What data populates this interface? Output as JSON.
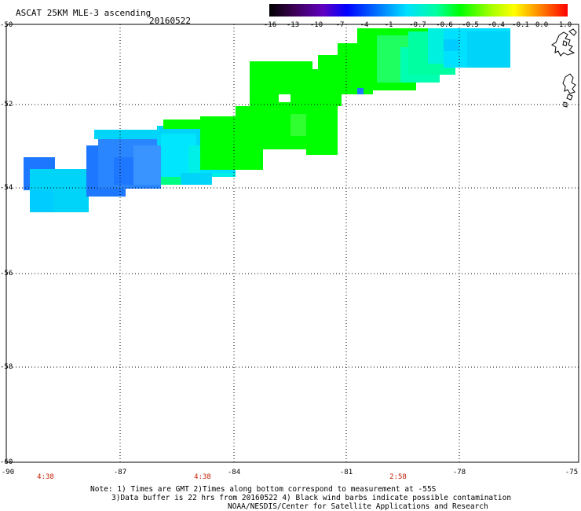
{
  "header": {
    "title": "ASCAT 25KM MLE-3 ascending",
    "date": "20160522"
  },
  "colorbar": {
    "labels": [
      "-16",
      "-13",
      "-10",
      "-7",
      "-4",
      "-1",
      "-0.7",
      "-0.6",
      "-0.5",
      "-0.4",
      "-0.1",
      "0.0",
      "1.0"
    ]
  },
  "axes": {
    "lat_labels": [
      "-50",
      "-52",
      "-54",
      "-56",
      "-58",
      "-60"
    ],
    "lon_labels": [
      "-90",
      "-87",
      "-84",
      "-81",
      "-78",
      "-75"
    ],
    "time_labels": [
      "4:38",
      "4:38",
      "2:58"
    ]
  },
  "notes": {
    "line1": "Note: 1) Times are GMT 2)Times along bottom correspond to measurement at -55S",
    "line2": "3)Data buffer is 22 hrs from 20160522 4) Black wind barbs indicate possible contamination",
    "line3": "NOAA/NESDIS/Center for Satellite Applications and Research"
  },
  "colors": {
    "deep_blue": "#1e78ff",
    "cyan": "#00e0ff",
    "cyan_light": "#00d4f8",
    "green": "#00ff00",
    "green_bright": "#22ff22"
  }
}
